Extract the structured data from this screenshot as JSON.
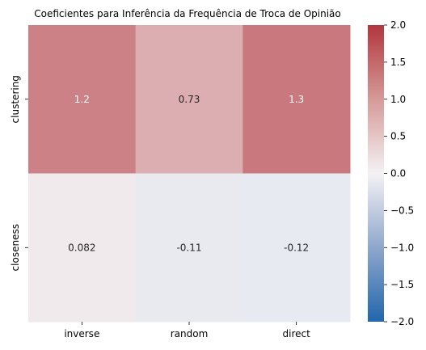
{
  "chart_data": {
    "type": "heatmap",
    "title": "Coeficientes para Inferência da Frequência de Troca de Opinião",
    "x_categories": [
      "inverse",
      "random",
      "direct"
    ],
    "y_categories": [
      "clustering",
      "closeness"
    ],
    "values": [
      [
        1.2,
        0.73,
        1.3
      ],
      [
        0.082,
        -0.11,
        -0.12
      ]
    ],
    "cell_labels": [
      [
        "1.2",
        "0.73",
        "1.3"
      ],
      [
        "0.082",
        "-0.11",
        "-0.12"
      ]
    ],
    "colorbar": {
      "vmin": -2.0,
      "vmax": 2.0,
      "ticks": [
        2.0,
        1.5,
        1.0,
        0.5,
        0.0,
        -0.5,
        -1.0,
        -1.5,
        -2.0
      ],
      "tick_labels": [
        "2.0",
        "1.5",
        "1.0",
        "0.5",
        "0.0",
        "−0.5",
        "−1.0",
        "−1.5",
        "−2.0"
      ],
      "colormap": "vlag",
      "stops": [
        "#2166ac",
        "#f7f7f7",
        "#b2182b"
      ]
    }
  }
}
